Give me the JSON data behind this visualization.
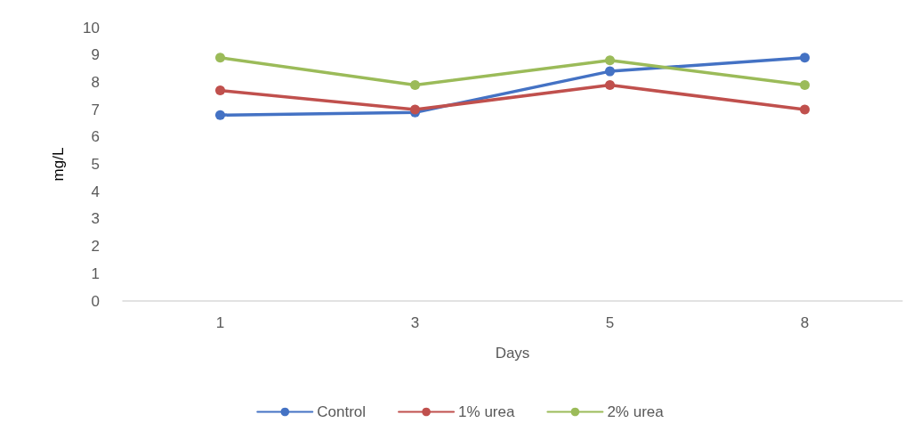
{
  "chart_data": {
    "type": "line",
    "xlabel": "Days",
    "ylabel": "mg/L",
    "categories": [
      "1",
      "3",
      "5",
      "8"
    ],
    "series": [
      {
        "name": "Control",
        "color": "#4472c4",
        "values": [
          6.8,
          6.9,
          8.4,
          8.9
        ]
      },
      {
        "name": "1% urea",
        "color": "#c0504d",
        "values": [
          7.7,
          7.0,
          7.9,
          7.0
        ]
      },
      {
        "name": "2% urea",
        "color": "#9bbb59",
        "values": [
          8.9,
          7.9,
          8.8,
          7.9
        ]
      }
    ],
    "ylim": [
      0,
      10
    ],
    "yticks": [
      0,
      1,
      2,
      3,
      4,
      5,
      6,
      7,
      8,
      9,
      10
    ],
    "grid": false,
    "legend": "bottom",
    "marker": "circle",
    "line_style": "solid"
  }
}
